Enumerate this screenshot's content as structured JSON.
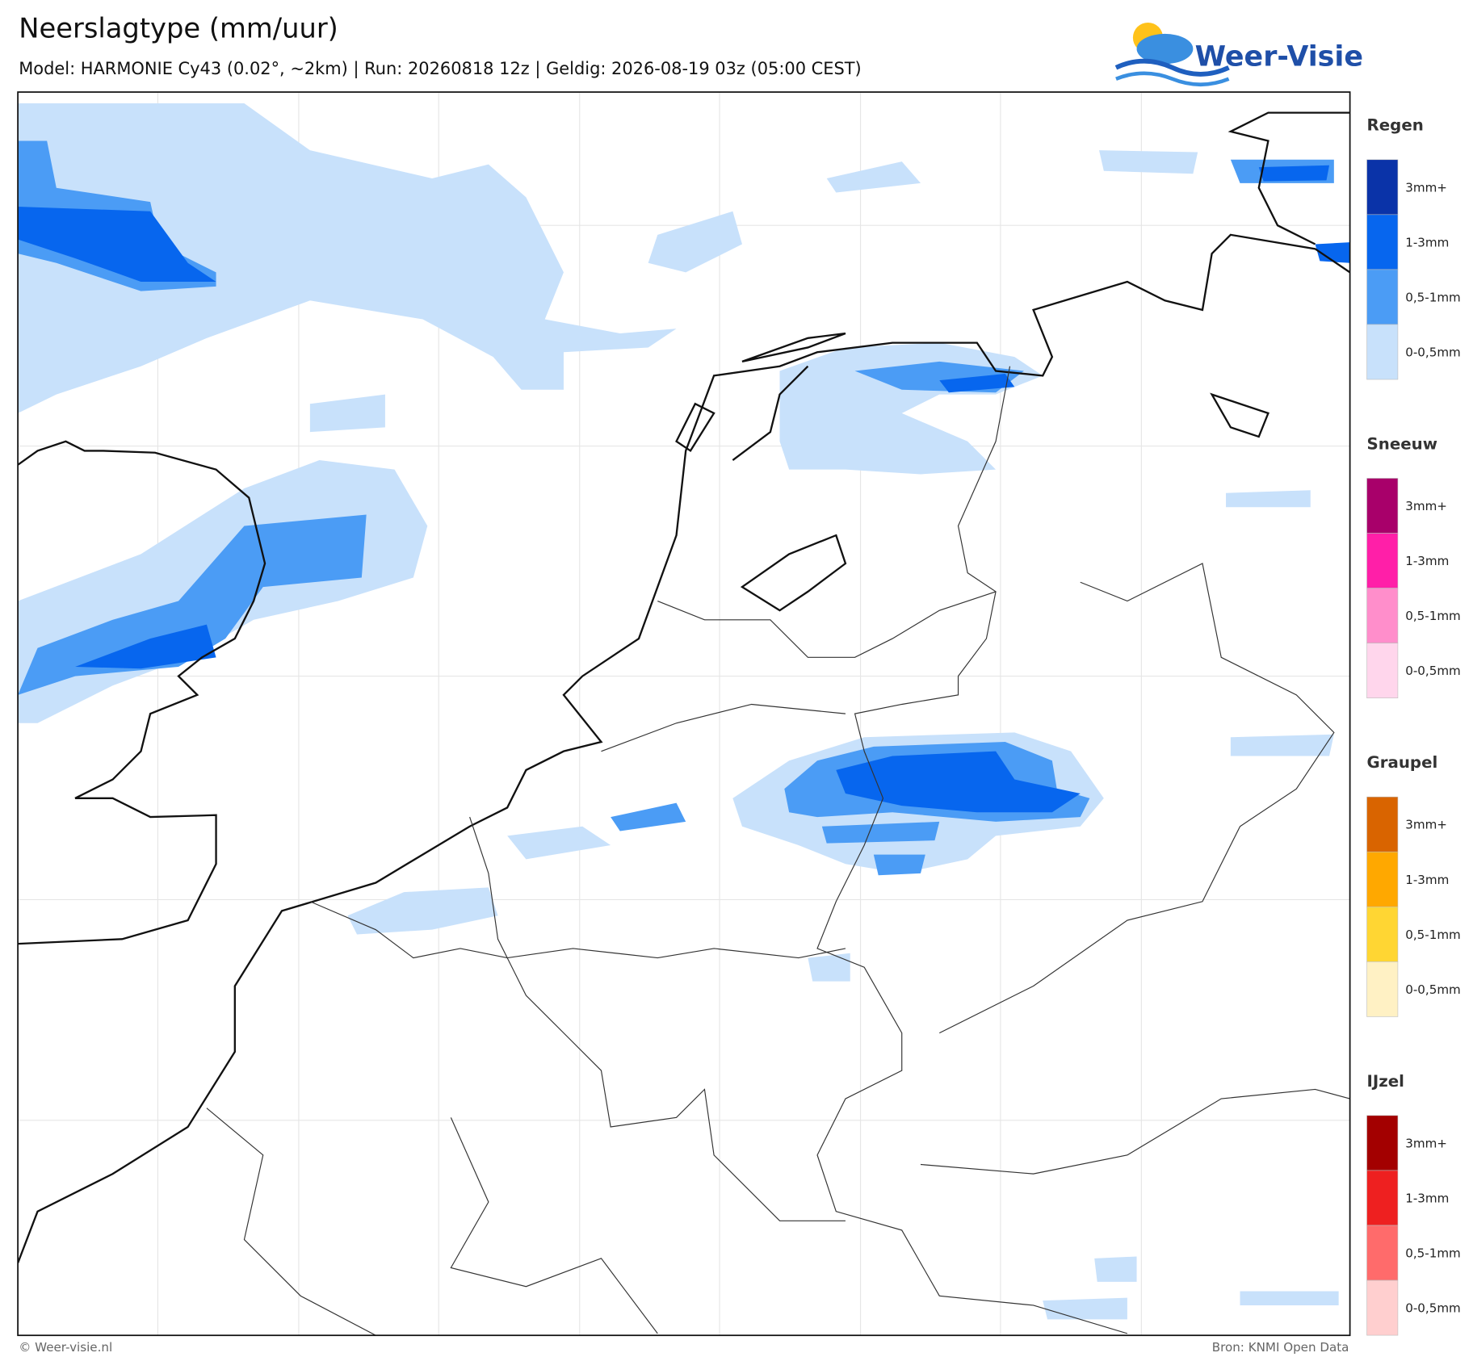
{
  "header": {
    "title": "Neerslagtype (mm/uur)",
    "subtitle": "Model: HARMONIE Cy43 (0.02°, ~2km)  |  Run: 20260818 12z  |  Geldig: 2026-08-19 03z (05:00 CEST)"
  },
  "logo": {
    "text": "Weer-Visie"
  },
  "legend": [
    {
      "title": "Regen",
      "items": [
        "3mm+",
        "1-3mm",
        "0,5-1mm",
        "0-0,5mm"
      ],
      "colors": [
        "#0a33a8",
        "#0766ee",
        "#4b9cf5",
        "#c8e1fb"
      ]
    },
    {
      "title": "Sneeuw",
      "items": [
        "3mm+",
        "1-3mm",
        "0,5-1mm",
        "0-0,5mm"
      ],
      "colors": [
        "#a8006a",
        "#ff1fa8",
        "#ff8ecb",
        "#ffd6ec"
      ]
    },
    {
      "title": "Graupel",
      "items": [
        "3mm+",
        "1-3mm",
        "0,5-1mm",
        "0-0,5mm"
      ],
      "colors": [
        "#d96400",
        "#ffa800",
        "#ffd633",
        "#fff1c4"
      ]
    },
    {
      "title": "IJzel",
      "items": [
        "3mm+",
        "1-3mm",
        "0,5-1mm",
        "0-0,5mm"
      ],
      "colors": [
        "#a30000",
        "#ee2020",
        "#ff6b6b",
        "#ffcfcf"
      ]
    }
  ],
  "footer": {
    "left": "© Weer-visie.nl",
    "right": "Bron: KNMI Open Data"
  }
}
